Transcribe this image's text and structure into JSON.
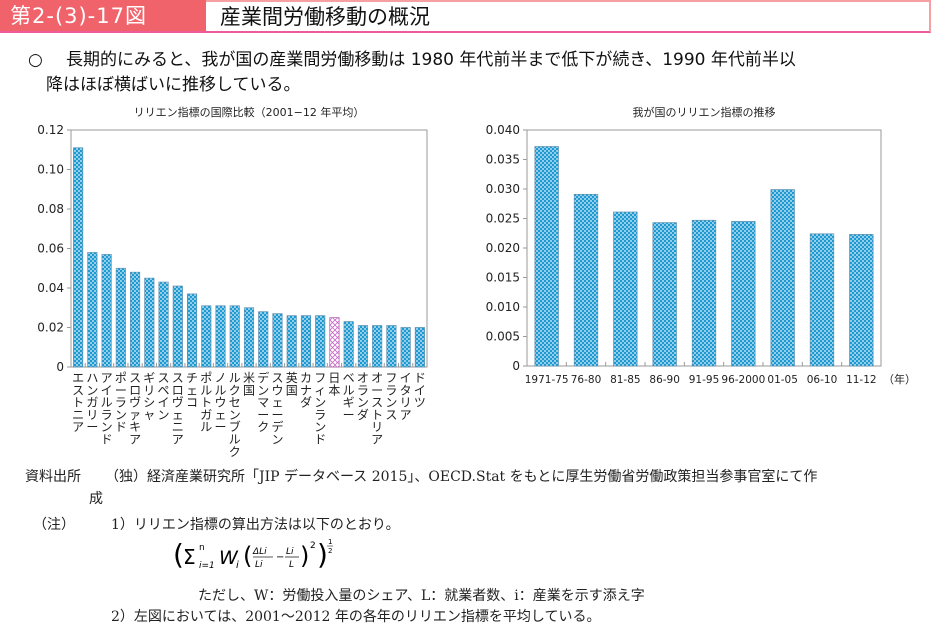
{
  "header": {
    "figure_number": "第2-(3)-17図",
    "title": "産業間労働移動の概況",
    "accent_color": "#f0636b"
  },
  "summary": {
    "bullet": "○",
    "line1": "長期的にみると、我が国の産業間労働移動は 1980 年代前半まで低下が続き、1990 年代前半以",
    "line2": "降はほぼ横ばいに推移している。"
  },
  "chart_data": [
    {
      "type": "bar",
      "title": "リリエン指標の国際比較（2001−12 年平均）",
      "xlabel": "",
      "ylabel": "",
      "ylim": [
        0,
        0.12
      ],
      "yticks": [
        "0",
        "0.02",
        "0.04",
        "0.06",
        "0.08",
        "0.10",
        "0.12"
      ],
      "ytick_values": [
        0,
        0.02,
        0.04,
        0.06,
        0.08,
        0.1,
        0.12
      ],
      "categories": [
        "エストニア",
        "ハンガリー",
        "アイルランド",
        "ポーランド",
        "スロヴァキア",
        "ギリシャ",
        "スペイン",
        "スロヴェニア",
        "チェコ",
        "ポルトガル",
        "ノルウェー",
        "ルクセンブルク",
        "米国",
        "デンマーク",
        "スウェーデン",
        "英国",
        "カナダ",
        "フィンランド",
        "日本",
        "ベルギー",
        "オランダ",
        "オーストリア",
        "フランス",
        "イタリア",
        "ドイツ"
      ],
      "values": [
        0.111,
        0.058,
        0.057,
        0.05,
        0.048,
        0.045,
        0.043,
        0.041,
        0.037,
        0.031,
        0.031,
        0.031,
        0.03,
        0.028,
        0.027,
        0.026,
        0.026,
        0.026,
        0.025,
        0.023,
        0.021,
        0.021,
        0.021,
        0.02,
        0.02
      ],
      "highlight": "日本",
      "bar_color": "#1d9ad2",
      "highlight_color": "#c768c7",
      "grid": false,
      "legend": "none"
    },
    {
      "type": "bar",
      "title": "我が国のリリエン指標の推移",
      "xlabel": "（年）",
      "ylabel": "",
      "ylim": [
        0,
        0.04
      ],
      "yticks": [
        "0",
        "0.005",
        "0.010",
        "0.015",
        "0.020",
        "0.025",
        "0.030",
        "0.035",
        "0.040"
      ],
      "ytick_values": [
        0,
        0.005,
        0.01,
        0.015,
        0.02,
        0.025,
        0.03,
        0.035,
        0.04
      ],
      "categories": [
        "1971-75",
        "76-80",
        "81-85",
        "86-90",
        "91-95",
        "96-2000",
        "01-05",
        "06-10",
        "11-12"
      ],
      "values": [
        0.0372,
        0.0291,
        0.0261,
        0.0243,
        0.0247,
        0.0245,
        0.0299,
        0.0224,
        0.0223
      ],
      "bar_color": "#1d9ad2",
      "grid": false,
      "legend": "none"
    }
  ],
  "notes": {
    "source_label": "資料出所",
    "source_text": "（独）経済産業研究所「JIP データベース 2015」、OECD.Stat をもとに厚生労働省労働政策担当参事官室にて作",
    "source_text_cont": "成",
    "note_label": "（注）",
    "note1": "1）リリエン指標の算出方法は以下のとおり。",
    "formula": "(Σⁿᵢ₌₁ Wᵢ (ΔLi/Li − Li/L)²)^½",
    "formula_parts": {
      "sigma": "Σ",
      "sup_n": "n",
      "sub_i1": "i=1",
      "W": "W",
      "sub_i": "i",
      "num1": "ΔLi",
      "den1": "Li",
      "num2": "Li",
      "den2": "L",
      "sq": "2",
      "half_num": "1",
      "half_den": "2"
    },
    "note1_detail": "ただし、W：労働投入量のシェア、L：就業者数、i：産業を示す添え字",
    "note2": "2）左図においては、2001～2012 年の各年のリリエン指標を平均している。"
  }
}
